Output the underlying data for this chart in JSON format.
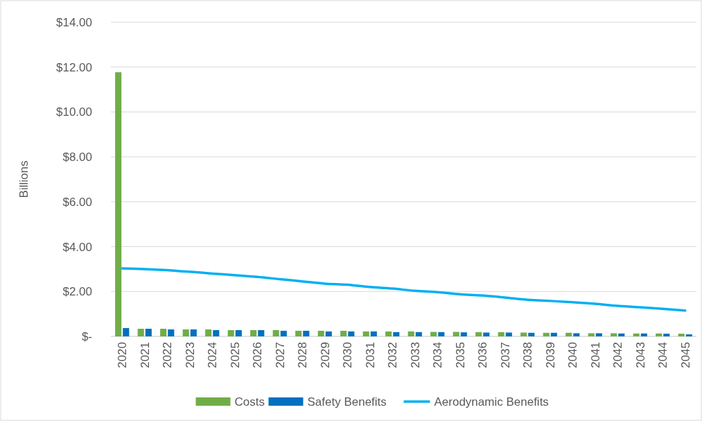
{
  "chart_data": {
    "type": "bar",
    "ylabel": "Billions",
    "categories": [
      "2020",
      "2021",
      "2022",
      "2023",
      "2024",
      "2025",
      "2026",
      "2027",
      "2028",
      "2029",
      "2030",
      "2031",
      "2032",
      "2033",
      "2034",
      "2035",
      "2036",
      "2037",
      "2038",
      "2039",
      "2040",
      "2041",
      "2042",
      "2043",
      "2044",
      "2045"
    ],
    "series": [
      {
        "name": "Costs",
        "color": "#70ad47",
        "values": [
          11.77,
          0.34,
          0.34,
          0.31,
          0.31,
          0.28,
          0.28,
          0.28,
          0.25,
          0.25,
          0.25,
          0.22,
          0.22,
          0.22,
          0.2,
          0.2,
          0.19,
          0.19,
          0.17,
          0.16,
          0.16,
          0.14,
          0.14,
          0.13,
          0.13,
          0.12
        ]
      },
      {
        "name": "Safety Benefits",
        "color": "#0070c0",
        "values": [
          0.37,
          0.34,
          0.31,
          0.31,
          0.28,
          0.28,
          0.28,
          0.25,
          0.25,
          0.22,
          0.22,
          0.22,
          0.19,
          0.19,
          0.19,
          0.18,
          0.17,
          0.17,
          0.16,
          0.16,
          0.14,
          0.14,
          0.13,
          0.13,
          0.12,
          0.09
        ]
      },
      {
        "name": "Aerodynamic Benefits",
        "type": "line",
        "color": "#00b0f0",
        "values": [
          3.03,
          3.0,
          2.95,
          2.88,
          2.8,
          2.73,
          2.65,
          2.55,
          2.45,
          2.35,
          2.3,
          2.2,
          2.13,
          2.03,
          1.97,
          1.88,
          1.82,
          1.73,
          1.63,
          1.58,
          1.52,
          1.45,
          1.36,
          1.3,
          1.23,
          1.15
        ]
      }
    ],
    "ylim": [
      0,
      14
    ],
    "yticks": [
      {
        "value": 0,
        "label": "$-"
      },
      {
        "value": 2,
        "label": "$2.00"
      },
      {
        "value": 4,
        "label": "$4.00"
      },
      {
        "value": 6,
        "label": "$6.00"
      },
      {
        "value": 8,
        "label": "$8.00"
      },
      {
        "value": 10,
        "label": "$10.00"
      },
      {
        "value": 12,
        "label": "$12.00"
      },
      {
        "value": 14,
        "label": "$14.00"
      }
    ],
    "grid": "y",
    "legend": "bottom",
    "marker": "none",
    "line_style": "solid"
  }
}
